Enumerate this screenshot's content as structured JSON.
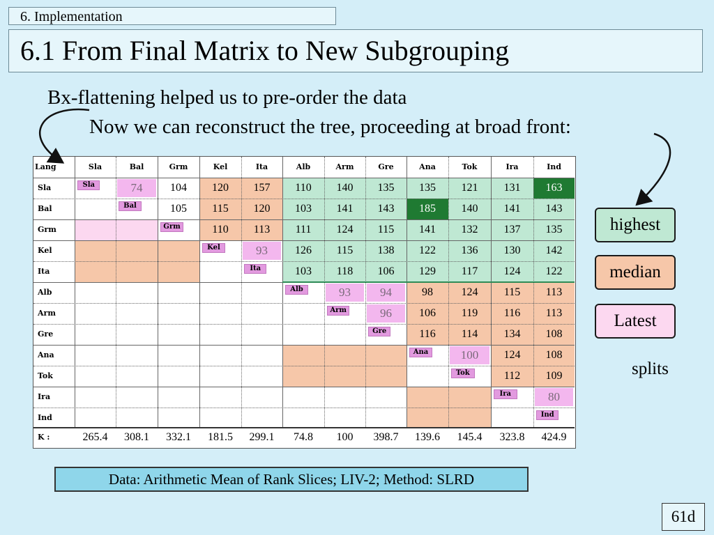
{
  "section": "6.  Implementation",
  "title": "6.1  From Final Matrix to New Subgrouping",
  "line1": "Bx-flattening helped us to pre-order the data",
  "line2": "Now we can reconstruct the tree, proceeding at broad front:",
  "matrix": {
    "corner_label": "Lang",
    "columns": [
      "Sla",
      "Bal",
      "Grm",
      "Kel",
      "Ita",
      "Alb",
      "Arm",
      "Gre",
      "Ana",
      "Tok",
      "Ira",
      "Ind"
    ],
    "rows": [
      "Sla",
      "Bal",
      "Grm",
      "Kel",
      "Ita",
      "Alb",
      "Arm",
      "Gre",
      "Ana",
      "Tok",
      "Ira",
      "Ind"
    ],
    "values": [
      [
        "",
        "74",
        "104",
        "120",
        "157",
        "110",
        "140",
        "135",
        "135",
        "121",
        "131",
        "163"
      ],
      [
        "",
        "",
        "105",
        "115",
        "120",
        "103",
        "141",
        "143",
        "185",
        "140",
        "141",
        "143"
      ],
      [
        "",
        "",
        "",
        "110",
        "113",
        "111",
        "124",
        "115",
        "141",
        "132",
        "137",
        "135"
      ],
      [
        "",
        "",
        "",
        "",
        "93",
        "126",
        "115",
        "138",
        "122",
        "136",
        "130",
        "142"
      ],
      [
        "",
        "",
        "",
        "",
        "",
        "103",
        "118",
        "106",
        "129",
        "117",
        "124",
        "122"
      ],
      [
        "",
        "",
        "",
        "",
        "",
        "",
        "93",
        "94",
        "98",
        "124",
        "115",
        "113"
      ],
      [
        "",
        "",
        "",
        "",
        "",
        "",
        "",
        "96",
        "106",
        "119",
        "116",
        "113"
      ],
      [
        "",
        "",
        "",
        "",
        "",
        "",
        "",
        "",
        "116",
        "114",
        "134",
        "108"
      ],
      [
        "",
        "",
        "",
        "",
        "",
        "",
        "",
        "",
        "",
        "100",
        "124",
        "108"
      ],
      [
        "",
        "",
        "",
        "",
        "",
        "",
        "",
        "",
        "",
        "",
        "112",
        "109"
      ],
      [
        "",
        "",
        "",
        "",
        "",
        "",
        "",
        "",
        "",
        "",
        "",
        "80"
      ],
      [
        "",
        "",
        "",
        "",
        "",
        "",
        "",
        "",
        "",
        "",
        "",
        ""
      ]
    ],
    "k_label": "K :",
    "k_values": [
      "265.4",
      "308.1",
      "332.1",
      "181.5",
      "299.1",
      "74.8",
      "100",
      "398.7",
      "139.6",
      "145.4",
      "323.8",
      "424.9"
    ]
  },
  "legend": {
    "highest": "highest",
    "median": "median",
    "latest": "Latest",
    "splits": "splits"
  },
  "caption": "Data: Arithmetic Mean of Rank Slices; LIV-2;  Method: SLRD",
  "page_number": "61d",
  "colors": {
    "highest": "#bfe8d3",
    "median": "#f6c7a9",
    "latest": "#fcd8f0",
    "highlight": "#1f7a32",
    "background": "#d4eef8"
  }
}
